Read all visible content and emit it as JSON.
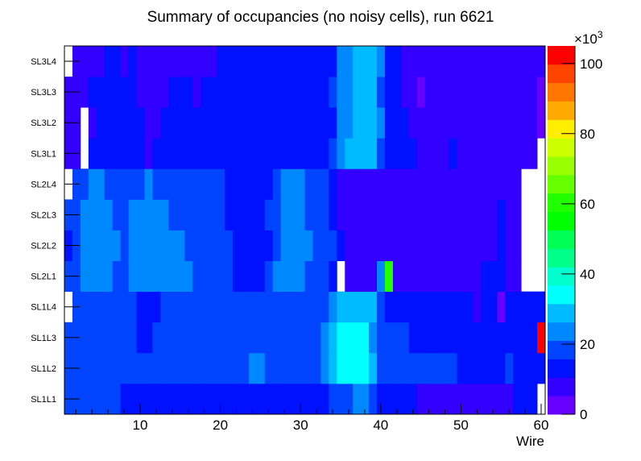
{
  "chart_data": {
    "type": "heatmap",
    "title": "Summary of occupancies (no noisy cells), run 6621",
    "xlabel": "Wire",
    "ylabel": "",
    "xlim": [
      0.5,
      60.5
    ],
    "x_ticks": [
      10,
      20,
      30,
      40,
      50,
      60
    ],
    "y_categories": [
      "SL1L1",
      "SL1L2",
      "SL1L3",
      "SL1L4",
      "SL2L1",
      "SL2L2",
      "SL2L3",
      "SL2L4",
      "SL3L1",
      "SL3L2",
      "SL3L3",
      "SL3L4"
    ],
    "z_unit_label": "×10",
    "z_unit_exp": "3",
    "zlim": [
      0,
      105
    ],
    "z_ticks": [
      0,
      20,
      40,
      60,
      80,
      100
    ],
    "z_levels": 20,
    "palette": [
      "#6600ff",
      "#3300ff",
      "#0011ff",
      "#0044ff",
      "#0088ff",
      "#00bbff",
      "#00ffff",
      "#00ffcc",
      "#00ff88",
      "#00ff55",
      "#00ff00",
      "#22ff00",
      "#66ff00",
      "#99ff00",
      "#ccff00",
      "#ffee00",
      "#ffaa00",
      "#ff7700",
      "#ff4400",
      "#ff0000"
    ],
    "values_note": "values in thousands, run-length encoded per row as [value, count] over wires 1..60; 0 = empty",
    "rows": {
      "SL1L1": [
        [
          18,
          7
        ],
        [
          13,
          26
        ],
        [
          18,
          3
        ],
        [
          24,
          2
        ],
        [
          18,
          1
        ],
        [
          13,
          5
        ],
        [
          8,
          12
        ],
        [
          13,
          3
        ],
        [
          0,
          1
        ]
      ],
      "SL1L2": [
        [
          18,
          23
        ],
        [
          24,
          2
        ],
        [
          18,
          7
        ],
        [
          24,
          1
        ],
        [
          29,
          1
        ],
        [
          34,
          4
        ],
        [
          29,
          1
        ],
        [
          18,
          10
        ],
        [
          13,
          6
        ],
        [
          18,
          1
        ],
        [
          13,
          4
        ]
      ],
      "SL1L3": [
        [
          18,
          9
        ],
        [
          13,
          2
        ],
        [
          18,
          21
        ],
        [
          24,
          1
        ],
        [
          29,
          1
        ],
        [
          34,
          4
        ],
        [
          24,
          1
        ],
        [
          18,
          4
        ],
        [
          13,
          16
        ],
        [
          103,
          1
        ]
      ],
      "SL1L4": [
        [
          0,
          1
        ],
        [
          18,
          8
        ],
        [
          13,
          3
        ],
        [
          18,
          21
        ],
        [
          24,
          1
        ],
        [
          29,
          5
        ],
        [
          18,
          1
        ],
        [
          13,
          11
        ],
        [
          8,
          1
        ],
        [
          13,
          2
        ],
        [
          3,
          1
        ],
        [
          13,
          5
        ]
      ],
      "SL2L1": [
        [
          18,
          2
        ],
        [
          24,
          4
        ],
        [
          18,
          2
        ],
        [
          24,
          8
        ],
        [
          18,
          5
        ],
        [
          13,
          4
        ],
        [
          18,
          1
        ],
        [
          24,
          4
        ],
        [
          18,
          3
        ],
        [
          13,
          1
        ],
        [
          0,
          1
        ],
        [
          8,
          4
        ],
        [
          24,
          1
        ],
        [
          60,
          1
        ],
        [
          8,
          11
        ],
        [
          13,
          3
        ],
        [
          8,
          2
        ],
        [
          0,
          3
        ]
      ],
      "SL2L2": [
        [
          13,
          1
        ],
        [
          18,
          1
        ],
        [
          24,
          5
        ],
        [
          18,
          1
        ],
        [
          24,
          7
        ],
        [
          18,
          6
        ],
        [
          13,
          5
        ],
        [
          18,
          1
        ],
        [
          24,
          4
        ],
        [
          18,
          3
        ],
        [
          13,
          1
        ],
        [
          8,
          19
        ],
        [
          13,
          1
        ],
        [
          8,
          2
        ],
        [
          0,
          3
        ]
      ],
      "SL2L3": [
        [
          18,
          2
        ],
        [
          24,
          4
        ],
        [
          18,
          2
        ],
        [
          24,
          5
        ],
        [
          18,
          7
        ],
        [
          13,
          5
        ],
        [
          18,
          2
        ],
        [
          24,
          3
        ],
        [
          18,
          3
        ],
        [
          13,
          1
        ],
        [
          8,
          20
        ],
        [
          13,
          1
        ],
        [
          8,
          2
        ],
        [
          0,
          3
        ]
      ],
      "SL2L4": [
        [
          0,
          1
        ],
        [
          18,
          2
        ],
        [
          24,
          2
        ],
        [
          18,
          5
        ],
        [
          24,
          1
        ],
        [
          18,
          9
        ],
        [
          13,
          6
        ],
        [
          18,
          1
        ],
        [
          24,
          3
        ],
        [
          18,
          3
        ],
        [
          13,
          1
        ],
        [
          8,
          23
        ],
        [
          0,
          3
        ]
      ],
      "SL3L1": [
        [
          8,
          2
        ],
        [
          0,
          1
        ],
        [
          13,
          7
        ],
        [
          8,
          1
        ],
        [
          13,
          22
        ],
        [
          18,
          1
        ],
        [
          24,
          1
        ],
        [
          29,
          4
        ],
        [
          18,
          1
        ],
        [
          13,
          4
        ],
        [
          8,
          4
        ],
        [
          13,
          1
        ],
        [
          8,
          10
        ],
        [
          0,
          1
        ]
      ],
      "SL3L2": [
        [
          8,
          2
        ],
        [
          0,
          1
        ],
        [
          8,
          1
        ],
        [
          13,
          6
        ],
        [
          8,
          2
        ],
        [
          13,
          22
        ],
        [
          24,
          2
        ],
        [
          29,
          3
        ],
        [
          24,
          1
        ],
        [
          13,
          3
        ],
        [
          8,
          16
        ],
        [
          3,
          1
        ]
      ],
      "SL3L3": [
        [
          8,
          3
        ],
        [
          13,
          6
        ],
        [
          8,
          4
        ],
        [
          13,
          3
        ],
        [
          8,
          1
        ],
        [
          13,
          16
        ],
        [
          18,
          1
        ],
        [
          24,
          2
        ],
        [
          29,
          3
        ],
        [
          18,
          1
        ],
        [
          13,
          2
        ],
        [
          8,
          2
        ],
        [
          3,
          1
        ],
        [
          8,
          14
        ],
        [
          3,
          1
        ]
      ],
      "SL3L4": [
        [
          0,
          1
        ],
        [
          8,
          4
        ],
        [
          13,
          2
        ],
        [
          8,
          1
        ],
        [
          13,
          1
        ],
        [
          8,
          10
        ],
        [
          13,
          15
        ],
        [
          24,
          2
        ],
        [
          29,
          3
        ],
        [
          24,
          1
        ],
        [
          13,
          2
        ],
        [
          8,
          18
        ]
      ]
    }
  }
}
